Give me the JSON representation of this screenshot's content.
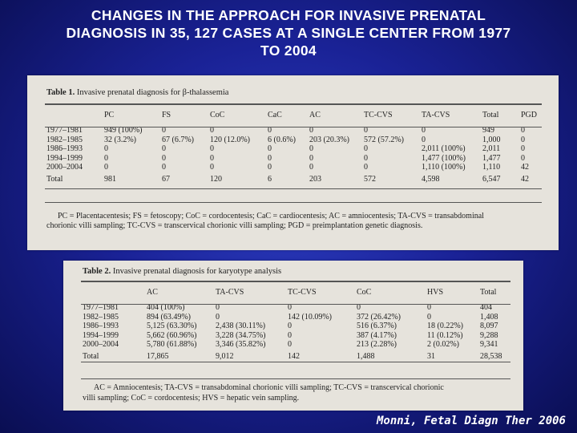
{
  "title": {
    "line1": "CHANGES IN THE APPROACH FOR INVASIVE PRENATAL",
    "line2": "DIAGNOSIS IN 35, 127 CASES AT A SINGLE CENTER FROM 1977",
    "line3": "TO 2004"
  },
  "table1": {
    "label": "Table 1.",
    "caption": "Invasive prenatal diagnosis for β-thalassemia",
    "columns": [
      "",
      "PC",
      "FS",
      "CoC",
      "CaC",
      "AC",
      "TC-CVS",
      "TA-CVS",
      "Total",
      "PGD"
    ],
    "rows": [
      [
        "1977–1981",
        "949 (100%)",
        "0",
        "0",
        "0",
        "0",
        "0",
        "0",
        "949",
        "0"
      ],
      [
        "1982–1985",
        "32 (3.2%)",
        "67 (6.7%)",
        "120 (12.0%)",
        "6 (0.6%)",
        "203 (20.3%)",
        "572 (57.2%)",
        "0",
        "1,000",
        "0"
      ],
      [
        "1986–1993",
        "0",
        "0",
        "0",
        "0",
        "0",
        "0",
        "2,011 (100%)",
        "2,011",
        "0"
      ],
      [
        "1994–1999",
        "0",
        "0",
        "0",
        "0",
        "0",
        "0",
        "1,477 (100%)",
        "1,477",
        "0"
      ],
      [
        "2000–2004",
        "0",
        "0",
        "0",
        "0",
        "0",
        "0",
        "1,110 (100%)",
        "1,110",
        "42"
      ]
    ],
    "total": [
      "Total",
      "981",
      "67",
      "120",
      "6",
      "203",
      "572",
      "4,598",
      "6,547",
      "42"
    ],
    "footnote1": "PC = Placentacentesis; FS = fetoscopy; CoC = cordocentesis; CaC = cardiocentesis; AC = amniocentesis; TA-CVS = transabdominal",
    "footnote2": "chorionic villi sampling; TC-CVS = transcervical chorionic villi sampling; PGD = preimplantation genetic diagnosis."
  },
  "table2": {
    "label": "Table 2.",
    "caption": "Invasive prenatal diagnosis for karyotype analysis",
    "columns": [
      "",
      "AC",
      "TA-CVS",
      "TC-CVS",
      "CoC",
      "HVS",
      "Total"
    ],
    "rows": [
      [
        "1977–1981",
        "404 (100%)",
        "0",
        "0",
        "0",
        "0",
        "404"
      ],
      [
        "1982–1985",
        "894 (63.49%)",
        "0",
        "142 (10.09%)",
        "372 (26.42%)",
        "0",
        "1,408"
      ],
      [
        "1986–1993",
        "5,125 (63.30%)",
        "2,438 (30.11%)",
        "0",
        "516 (6.37%)",
        "18 (0.22%)",
        "8,097"
      ],
      [
        "1994–1999",
        "5,662 (60.96%)",
        "3,228 (34.75%)",
        "0",
        "387 (4.17%)",
        "11 (0.12%)",
        "9,288"
      ],
      [
        "2000–2004",
        "5,780 (61.88%)",
        "3,346 (35.82%)",
        "0",
        "213 (2.28%)",
        "2 (0.02%)",
        "9,341"
      ]
    ],
    "total": [
      "Total",
      "17,865",
      "9,012",
      "142",
      "1,488",
      "31",
      "28,538"
    ],
    "footnote1": "AC = Amniocentesis; TA-CVS = transabdominal chorionic villi sampling; TC-CVS = transcervical chorionic",
    "footnote2": "villi sampling; CoC = cordocentesis; HVS = hepatic vein sampling."
  },
  "citation": "Monni, Fetal Diagn Ther 2006"
}
